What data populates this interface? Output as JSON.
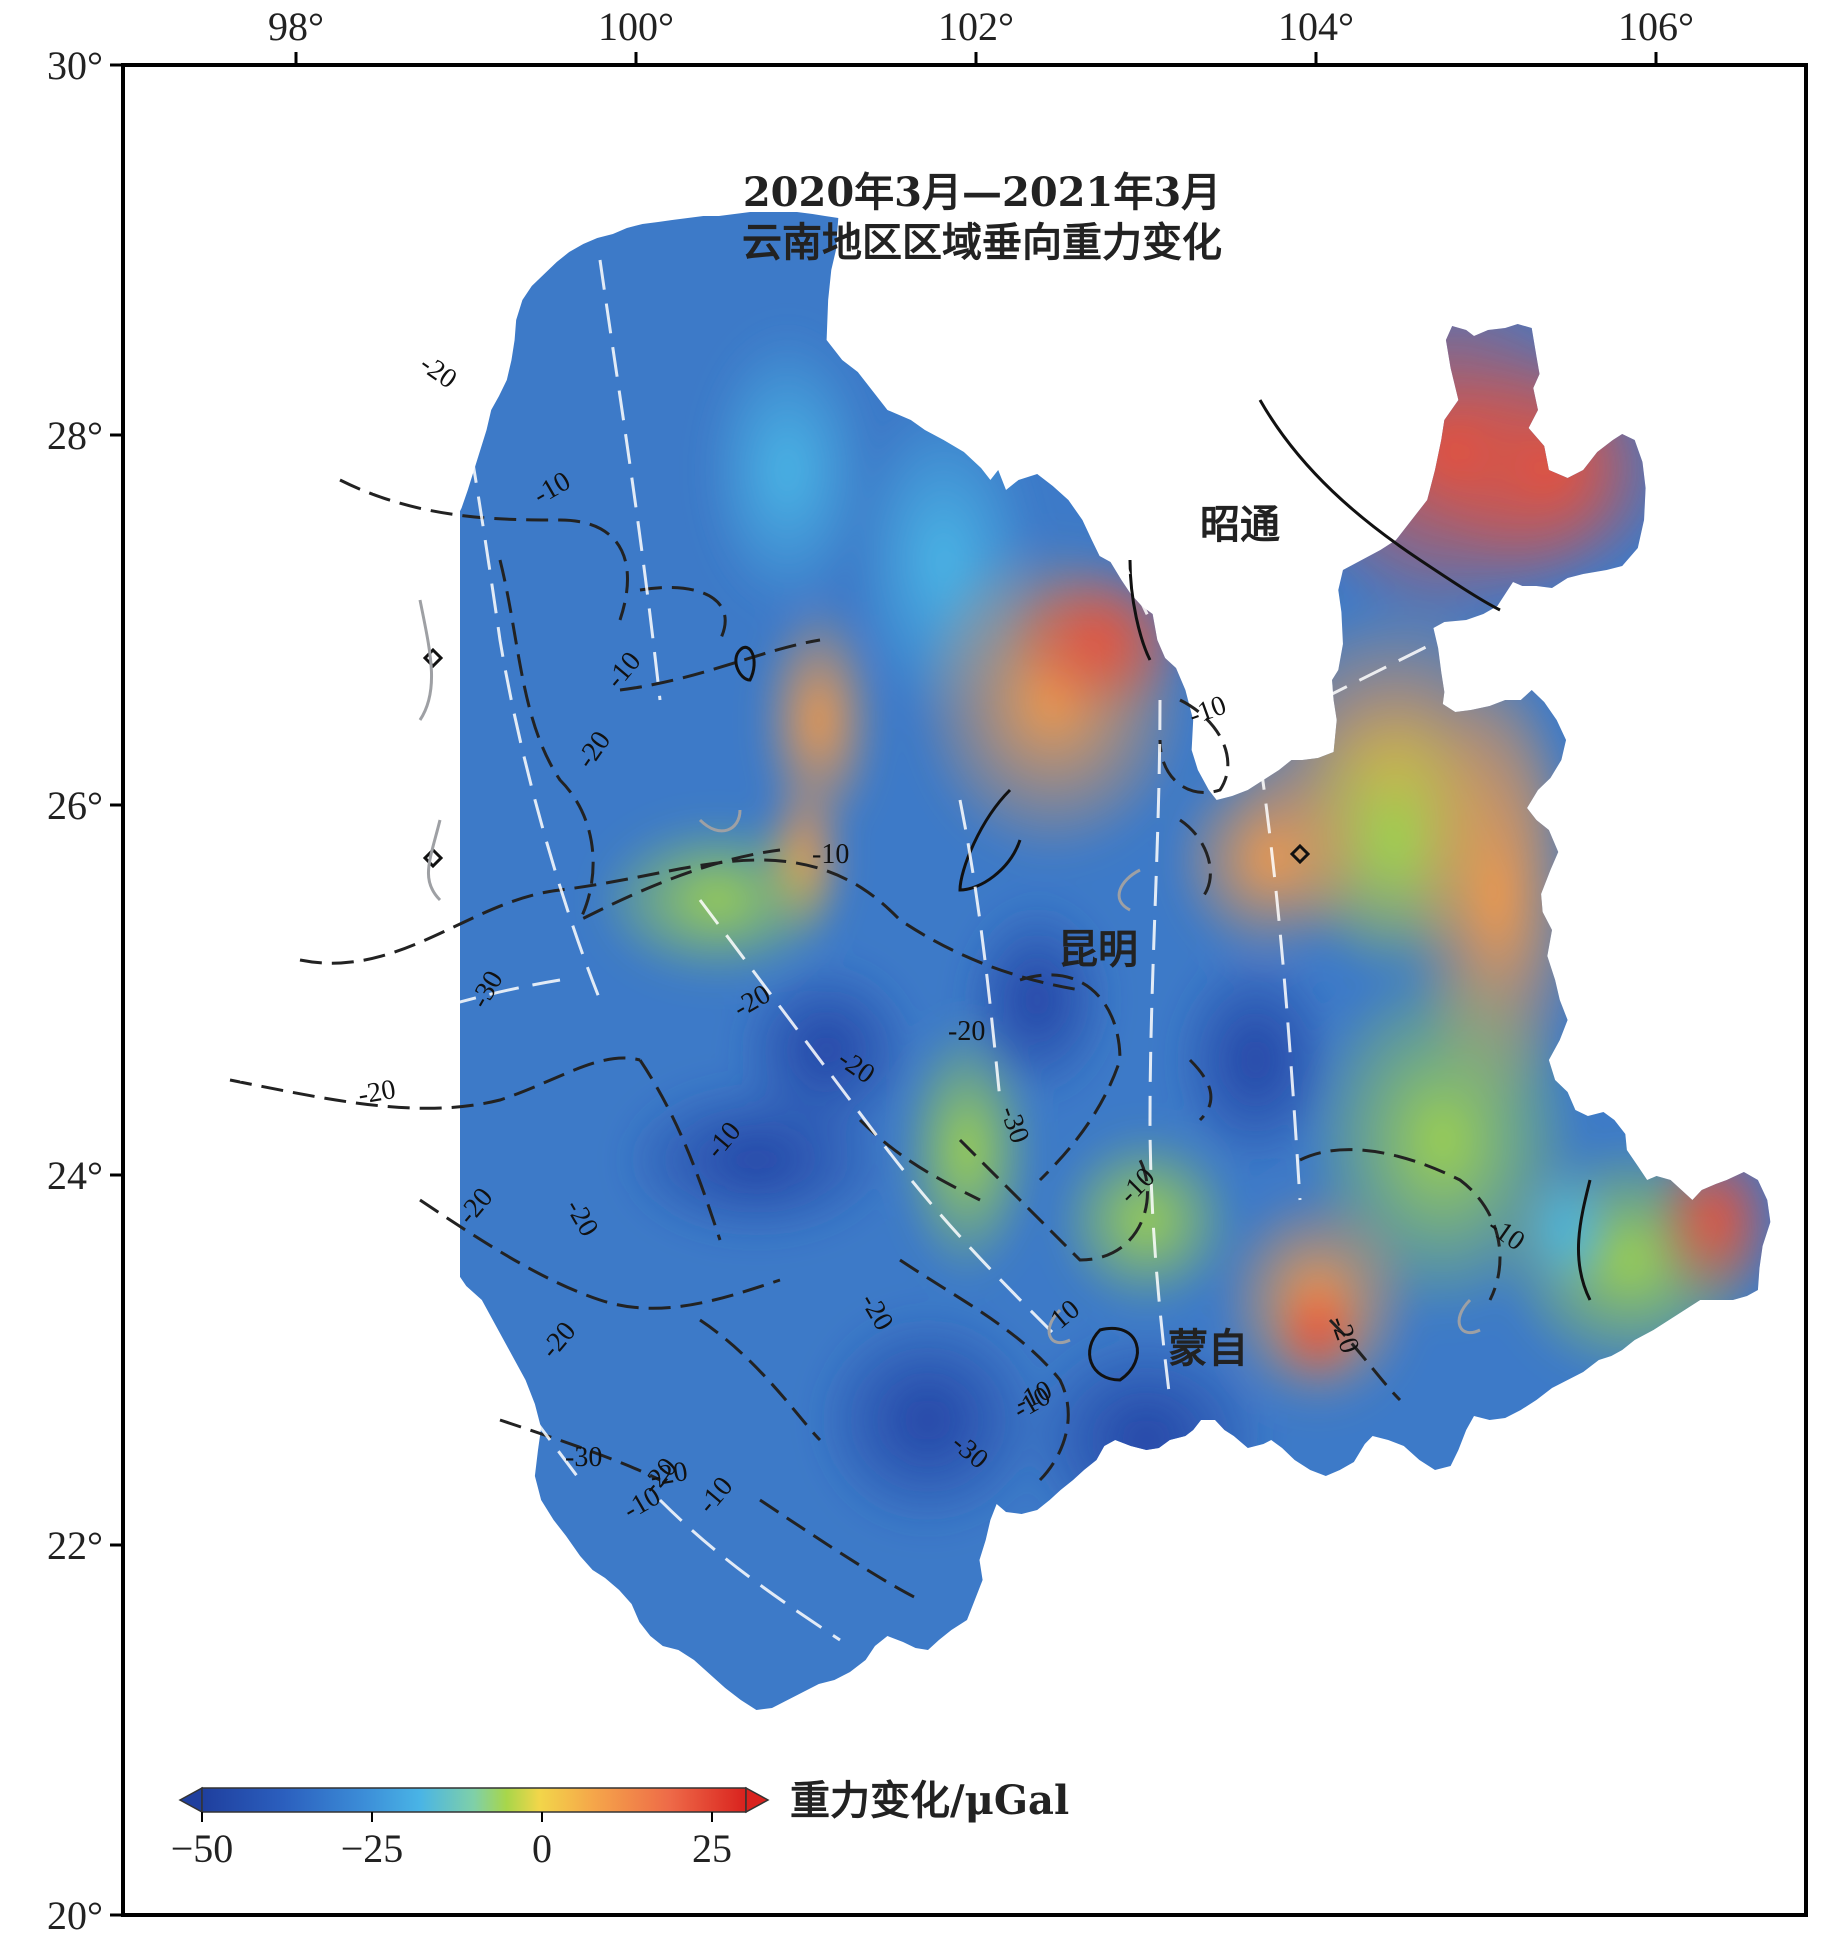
{
  "map": {
    "title_line1": "2020年3月—2021年3月",
    "title_line2": "云南地区区域垂向重力变化",
    "x_ticks": [
      "98°",
      "100°",
      "102°",
      "104°",
      "106°"
    ],
    "y_ticks": [
      "30°",
      "28°",
      "26°",
      "24°",
      "22°",
      "20°"
    ],
    "cities": {
      "zhaotong": "昭通",
      "kunming": "昆明",
      "mengzi": "蒙自"
    },
    "contour_labels": [
      "-20",
      "-10",
      "-10",
      "-10",
      "-20",
      "-10",
      "-10",
      "-10",
      "-20",
      "-30",
      "-20",
      "-20",
      "-20",
      "-30",
      "-20",
      "-10",
      "-20",
      "-20",
      "-10",
      "-20",
      "-20",
      "-30",
      "-30",
      "-20",
      "-10",
      "10",
      "-10",
      "-10",
      "-20"
    ],
    "colorbar": {
      "ticks": [
        "−50",
        "−25",
        "0",
        "25"
      ],
      "unit": "重力变化/μGal",
      "min": -50,
      "max": 30,
      "stops": [
        "#1f3f9e",
        "#2b5fbe",
        "#3c8ed8",
        "#49b4e6",
        "#7fd0a8",
        "#a8d64a",
        "#f2d64a",
        "#f5a64a",
        "#ee6a48",
        "#d9221e"
      ]
    },
    "colors": {
      "frame": "#000000",
      "boundary_fill_blue": "#3a73c8",
      "white_faults": "#ffffff"
    }
  }
}
